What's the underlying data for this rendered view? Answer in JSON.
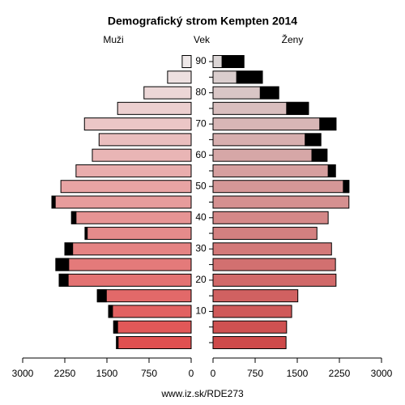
{
  "chart_data": {
    "type": "pyramid",
    "title": "Demografický strom Kempten 2014",
    "y_label": "Vek",
    "source": "www.iz.sk/RDE273",
    "categories": [
      null,
      null,
      "10",
      null,
      "20",
      null,
      "30",
      null,
      "40",
      null,
      "50",
      null,
      "60",
      null,
      "70",
      null,
      "80",
      null,
      "90"
    ],
    "series": [
      {
        "name": "Muži",
        "values": [
          1330,
          1380,
          1470,
          1670,
          2350,
          2410,
          2250,
          1890,
          2130,
          2480,
          2320,
          2050,
          1760,
          1640,
          1900,
          1310,
          840,
          420,
          160
        ]
      },
      {
        "name": "Ženy",
        "values": [
          1300,
          1310,
          1400,
          1510,
          2190,
          2180,
          2110,
          1850,
          2050,
          2420,
          2420,
          2180,
          2030,
          1920,
          2190,
          1700,
          1170,
          880,
          550
        ]
      }
    ],
    "colors": [
      "#e05050",
      "#e15858",
      "#e26161",
      "#e26969",
      "#e37272",
      "#e47a7a",
      "#e58383",
      "#e58b8b",
      "#e69494",
      "#e79c9c",
      "#e8a4a4",
      "#e9adad",
      "#e9b5b5",
      "#eabebe",
      "#ebc6c6",
      "#eccfcf",
      "#ecd7d7",
      "#ede0e0",
      "#eee8e8"
    ],
    "surplus_color": "#000000",
    "xlim": [
      0,
      3000
    ],
    "xticks": [
      0,
      750,
      1500,
      2250,
      3000
    ]
  }
}
